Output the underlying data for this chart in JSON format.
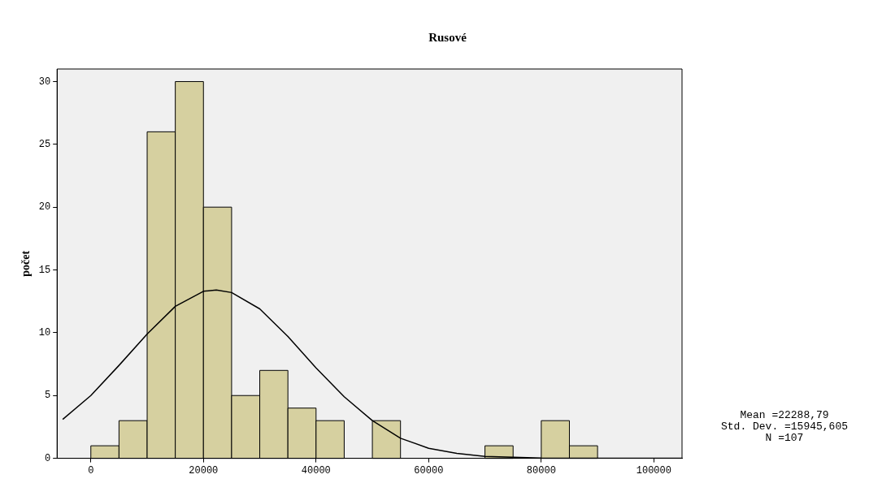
{
  "chart_data": {
    "type": "histogram",
    "title": "Rusové",
    "ylabel": "počet",
    "bins": [
      0,
      5000,
      10000,
      15000,
      20000,
      25000,
      30000,
      35000,
      40000,
      45000,
      50000,
      55000,
      60000,
      65000,
      70000,
      75000,
      80000,
      85000,
      90000
    ],
    "values": [
      1,
      3,
      26,
      30,
      20,
      5,
      7,
      4,
      3,
      0,
      3,
      0,
      0,
      0,
      1,
      0,
      3,
      1
    ],
    "color": "#d6d0a0",
    "series": [
      {
        "type": "line",
        "color": "#000000",
        "x": [
          -5000,
          0,
          5000,
          10000,
          15000,
          20000,
          22289,
          25000,
          30000,
          35000,
          40000,
          45000,
          50000,
          55000,
          60000,
          65000,
          70000,
          80000,
          90000,
          105000
        ],
        "values": [
          3.1,
          5.0,
          7.4,
          9.9,
          12.1,
          13.3,
          13.4,
          13.2,
          11.9,
          9.7,
          7.2,
          4.9,
          3.0,
          1.6,
          0.8,
          0.4,
          0.15,
          0.02,
          0,
          0
        ]
      }
    ],
    "xlim": [
      -6000,
      105000
    ],
    "xticks": [
      0,
      20000,
      40000,
      60000,
      80000,
      100000
    ],
    "ylim": [
      0,
      31
    ],
    "yticks": [
      0,
      5,
      10,
      15,
      20,
      25,
      30
    ],
    "grid": false,
    "legend": false,
    "marker": "none",
    "line_style": "solid",
    "annotations": [
      "Mean =22288,79",
      "Std. Dev. =15945,605",
      "N =107"
    ]
  }
}
